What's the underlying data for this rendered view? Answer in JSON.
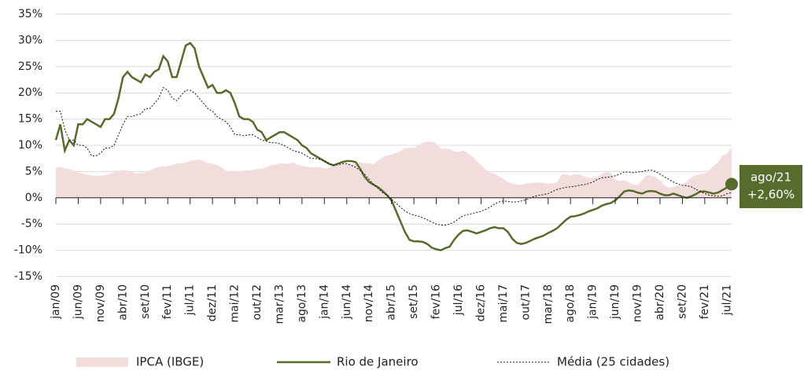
{
  "chart_data": {
    "type": "line",
    "categories": [
      "jan/09",
      null,
      null,
      null,
      null,
      "jun/09",
      null,
      null,
      null,
      null,
      "nov/09",
      null,
      null,
      null,
      null,
      "abr/10",
      null,
      null,
      null,
      null,
      "set/10",
      null,
      null,
      null,
      null,
      "fev/11",
      null,
      null,
      null,
      null,
      "jul/11",
      null,
      null,
      null,
      null,
      "dez/11",
      null,
      null,
      null,
      null,
      "mai/12",
      null,
      null,
      null,
      null,
      "out/12",
      null,
      null,
      null,
      null,
      "mar/13",
      null,
      null,
      null,
      null,
      "ago/13",
      null,
      null,
      null,
      null,
      "jan/14",
      null,
      null,
      null,
      null,
      "jun/14",
      null,
      null,
      null,
      null,
      "nov/14",
      null,
      null,
      null,
      null,
      "abr/15",
      null,
      null,
      null,
      null,
      "set/15",
      null,
      null,
      null,
      null,
      "fev/16",
      null,
      null,
      null,
      null,
      "jul/16",
      null,
      null,
      null,
      null,
      "dez/16",
      null,
      null,
      null,
      null,
      "mai/17",
      null,
      null,
      null,
      null,
      "out/17",
      null,
      null,
      null,
      null,
      "mar/18",
      null,
      null,
      null,
      null,
      "ago/18",
      null,
      null,
      null,
      null,
      "jan/19",
      null,
      null,
      null,
      null,
      "jun/19",
      null,
      null,
      null,
      null,
      "nov/19",
      null,
      null,
      null,
      null,
      "abr/20",
      null,
      null,
      null,
      null,
      "set/20",
      null,
      null,
      null,
      null,
      "fev/21",
      null,
      null,
      null,
      null,
      "jul/21",
      null
    ],
    "series": [
      {
        "name": "IPCA (IBGE)",
        "color": "#f2dcdc",
        "kind": "area",
        "values": [
          5.8,
          5.8,
          5.6,
          5.5,
          5.2,
          4.8,
          4.6,
          4.4,
          4.3,
          4.2,
          4.2,
          4.3,
          4.5,
          4.8,
          5.1,
          5.3,
          5.2,
          4.9,
          4.6,
          4.7,
          4.7,
          5.2,
          5.6,
          5.9,
          6,
          6,
          6.3,
          6.5,
          6.6,
          6.7,
          7,
          7.2,
          7.3,
          7,
          6.6,
          6.5,
          6.2,
          5.8,
          5.2,
          5.1,
          5,
          5,
          5.2,
          5.2,
          5.3,
          5.5,
          5.5,
          5.8,
          6.2,
          6.3,
          6.6,
          6.5,
          6.5,
          6.7,
          6.3,
          6.1,
          5.9,
          5.8,
          5.8,
          5.9,
          5.6,
          5.7,
          6.2,
          6.3,
          6.4,
          6.5,
          6.5,
          6.5,
          6.8,
          6.6,
          6.6,
          6.4,
          7.1,
          7.7,
          8.1,
          8.2,
          8.5,
          8.9,
          9.5,
          9.5,
          9.5,
          9.9,
          10.5,
          10.7,
          10.7,
          10.4,
          9.4,
          9.3,
          9.3,
          8.8,
          8.7,
          9,
          8.5,
          7.9,
          7,
          6.3,
          5.4,
          4.8,
          4.6,
          4.1,
          3.6,
          3,
          2.7,
          2.5,
          2.5,
          2.7,
          2.8,
          2.9,
          2.9,
          2.8,
          2.7,
          2.8,
          2.9,
          4.4,
          4.5,
          4.2,
          4.5,
          4.5,
          4.1,
          3.8,
          3.8,
          3.9,
          4.6,
          4.9,
          4.7,
          3.4,
          3.2,
          3.4,
          2.9,
          2.5,
          2.5,
          3.3,
          4.3,
          4.2,
          4,
          3.3,
          2.4,
          1.9,
          2.1,
          2.3,
          2.4,
          3.1,
          3.9,
          4.3,
          4.5,
          4.6,
          5.2,
          6.1,
          6.8,
          8.1,
          8.4,
          9.7
        ]
      },
      {
        "name": "Rio de Janeiro",
        "color": "#566b2c",
        "kind": "line",
        "values": [
          11,
          14,
          9,
          11,
          10,
          14,
          14,
          15,
          14.5,
          14,
          13.5,
          15,
          15,
          16,
          19,
          23,
          24,
          23,
          22.5,
          22,
          23.5,
          23,
          24,
          24.5,
          27,
          26,
          23,
          23,
          26,
          29,
          29.5,
          28.5,
          25,
          23,
          21,
          21.5,
          20,
          20,
          20.5,
          20,
          18,
          15.5,
          15,
          15,
          14.5,
          13,
          12.5,
          11,
          11.5,
          12,
          12.5,
          12.5,
          12,
          11.5,
          11,
          10,
          9.5,
          8.5,
          8,
          7.5,
          7,
          6.5,
          6.2,
          6.5,
          6.8,
          7,
          7,
          6.8,
          5.5,
          4,
          3,
          2.5,
          2,
          1.3,
          0.5,
          -0.5,
          -2.5,
          -4.5,
          -6.5,
          -8,
          -8.3,
          -8.3,
          -8.4,
          -8.8,
          -9.5,
          -9.8,
          -10,
          -9.6,
          -9.3,
          -8,
          -7,
          -6.3,
          -6.2,
          -6.5,
          -6.8,
          -6.5,
          -6.2,
          -5.8,
          -5.6,
          -5.8,
          -5.8,
          -6.5,
          -7.8,
          -8.6,
          -8.8,
          -8.6,
          -8.2,
          -7.8,
          -7.5,
          -7.2,
          -6.7,
          -6.3,
          -5.8,
          -5,
          -4.2,
          -3.6,
          -3.5,
          -3.3,
          -3,
          -2.6,
          -2.3,
          -2,
          -1.5,
          -1.2,
          -1,
          -0.5,
          0.3,
          1.2,
          1.4,
          1.3,
          1,
          0.8,
          1.2,
          1.3,
          1.2,
          0.8,
          0.5,
          0.5,
          0.8,
          0.5,
          0.2,
          0,
          0.3,
          0.7,
          1.2,
          1.2,
          1,
          0.8,
          1,
          1.5,
          2,
          2.6
        ]
      },
      {
        "name": "Média (25 cidades)",
        "color": "#111111",
        "kind": "line",
        "dash": true,
        "values": [
          16.5,
          16.5,
          13,
          11,
          11,
          10,
          10,
          9.5,
          8,
          8,
          8.5,
          9.5,
          9.5,
          10,
          12,
          14,
          15.5,
          15.5,
          15.8,
          16,
          17,
          17,
          18,
          19,
          21,
          20.5,
          19,
          18.5,
          19.5,
          20.5,
          20.5,
          20,
          19,
          18,
          17,
          16.5,
          15.5,
          15,
          14.5,
          13.5,
          12,
          12,
          11.8,
          12,
          12,
          11.5,
          11,
          10.8,
          10.5,
          10.5,
          10.3,
          10,
          9.5,
          9,
          8.8,
          8.5,
          8,
          7.5,
          7.5,
          7.3,
          7,
          6.5,
          6.2,
          6.3,
          6.5,
          6.5,
          6.2,
          5.8,
          5.2,
          4.5,
          3.5,
          2.5,
          1.8,
          1,
          0.5,
          -0.3,
          -1,
          -1.8,
          -2.5,
          -3,
          -3.3,
          -3.5,
          -3.8,
          -4.2,
          -4.6,
          -5,
          -5.2,
          -5.2,
          -5,
          -4.6,
          -4,
          -3.4,
          -3.2,
          -3,
          -2.8,
          -2.6,
          -2.2,
          -1.8,
          -1.2,
          -0.8,
          -0.6,
          -0.7,
          -0.8,
          -0.8,
          -0.6,
          -0.4,
          0,
          0.3,
          0.5,
          0.6,
          0.8,
          1.2,
          1.6,
          1.8,
          2,
          2.1,
          2.2,
          2.4,
          2.5,
          2.7,
          3,
          3.5,
          3.8,
          3.9,
          4,
          4.2,
          4.5,
          4.9,
          4.9,
          4.8,
          4.9,
          5,
          5.2,
          5.3,
          5,
          4.5,
          4,
          3.5,
          3,
          2.6,
          2.4,
          2.3,
          2.1,
          1.6,
          1.2,
          0.8,
          0.5,
          0.4,
          0.3,
          0.4,
          0.8,
          1.0
        ]
      }
    ],
    "ylim": [
      -15,
      35
    ],
    "yticks": [
      {
        "value": -15,
        "label": "-15%"
      },
      {
        "value": -10,
        "label": "-10%"
      },
      {
        "value": -5,
        "label": "-5%"
      },
      {
        "value": 0,
        "label": "0%"
      },
      {
        "value": 5,
        "label": "5%"
      },
      {
        "value": 10,
        "label": "10%"
      },
      {
        "value": 15,
        "label": "15%"
      },
      {
        "value": 20,
        "label": "20%"
      },
      {
        "value": 25,
        "label": "25%"
      },
      {
        "value": 30,
        "label": "30%"
      },
      {
        "value": 35,
        "label": "35%"
      }
    ],
    "grid": true,
    "legend": "bottom",
    "annotation": {
      "date": "ago/21",
      "value_label": "+2,60%"
    }
  }
}
